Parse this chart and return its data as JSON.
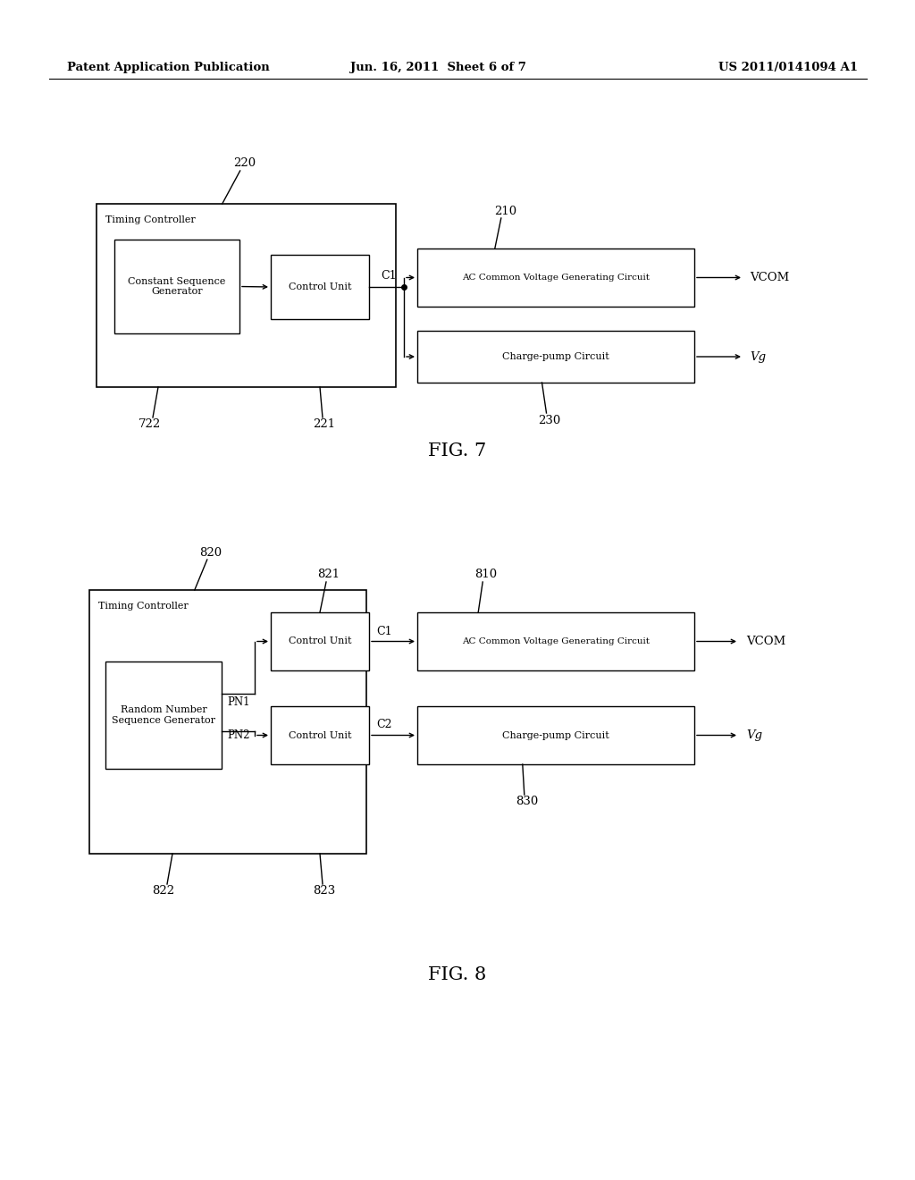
{
  "bg_color": "#ffffff",
  "header_left": "Patent Application Publication",
  "header_mid": "Jun. 16, 2011  Sheet 6 of 7",
  "header_right": "US 2011/0141094 A1",
  "fig7_label": "FIG. 7",
  "fig8_label": "FIG. 8",
  "fig7": {
    "timing_controller_label": "Timing Controller",
    "const_seq_gen_label": "Constant Sequence\nGenerator",
    "control_unit_label": "Control Unit",
    "ac_circuit_label": "AC Common Voltage Generating Circuit",
    "charge_pump_label": "Charge-pump Circuit",
    "vcom_label": "VCOM",
    "vg_label": "Vg",
    "c1_label": "C1",
    "label_220": "220",
    "label_722": "722",
    "label_221": "221",
    "label_210": "210",
    "label_230": "230"
  },
  "fig8": {
    "timing_controller_label": "Timing Controller",
    "rand_seq_gen_label": "Random Number\nSequence Generator",
    "control_unit1_label": "Control Unit",
    "control_unit2_label": "Control Unit",
    "ac_circuit_label": "AC Common Voltage Generating Circuit",
    "charge_pump_label": "Charge-pump Circuit",
    "vcom_label": "VCOM",
    "vg_label": "Vg",
    "c1_label": "C1",
    "c2_label": "C2",
    "pn1_label": "PN1",
    "pn2_label": "PN2",
    "label_820": "820",
    "label_821": "821",
    "label_822": "822",
    "label_823": "823",
    "label_810": "810",
    "label_830": "830"
  }
}
